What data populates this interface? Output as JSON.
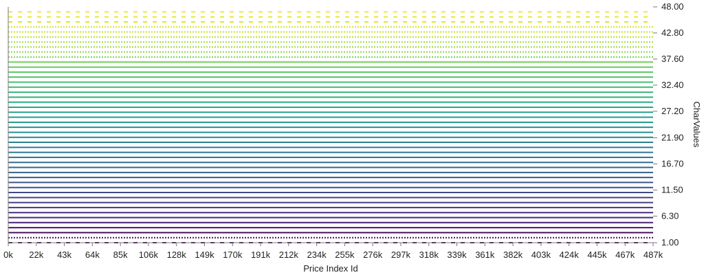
{
  "chart_data": {
    "type": "line",
    "title": "",
    "xlabel": "Price Index Id",
    "ylabel": "CharValues",
    "xlim": [
      0,
      487000
    ],
    "ylim": [
      1.0,
      48.0
    ],
    "x_ticks": [
      "0k",
      "22k",
      "43k",
      "64k",
      "85k",
      "106k",
      "128k",
      "149k",
      "170k",
      "191k",
      "212k",
      "234k",
      "255k",
      "276k",
      "297k",
      "318k",
      "339k",
      "361k",
      "382k",
      "403k",
      "424k",
      "445k",
      "467k",
      "487k"
    ],
    "y_ticks": [
      "1.00",
      "6.30",
      "11.50",
      "16.70",
      "21.90",
      "27.20",
      "32.40",
      "37.60",
      "42.80",
      "48.00"
    ],
    "y_axis_position": "right",
    "grid": false,
    "colormap": "viridis",
    "series_count": 47,
    "series_values": [
      1,
      2,
      3,
      4,
      5,
      6,
      7,
      8,
      9,
      10,
      11,
      12,
      13,
      14,
      15,
      16,
      17,
      18,
      19,
      20,
      21,
      22,
      23,
      24,
      25,
      26,
      27,
      28,
      29,
      30,
      31,
      32,
      33,
      34,
      35,
      36,
      37,
      38,
      39,
      40,
      41,
      42,
      43,
      44,
      45,
      46,
      47
    ],
    "series_style_note": "each series is a constant horizontal line across the full x range",
    "dotted_series": [
      2,
      38,
      39,
      40,
      41,
      42,
      43,
      44
    ],
    "dashed_series": [
      1,
      45,
      46,
      47
    ],
    "solid_series_range": [
      3,
      37
    ]
  }
}
